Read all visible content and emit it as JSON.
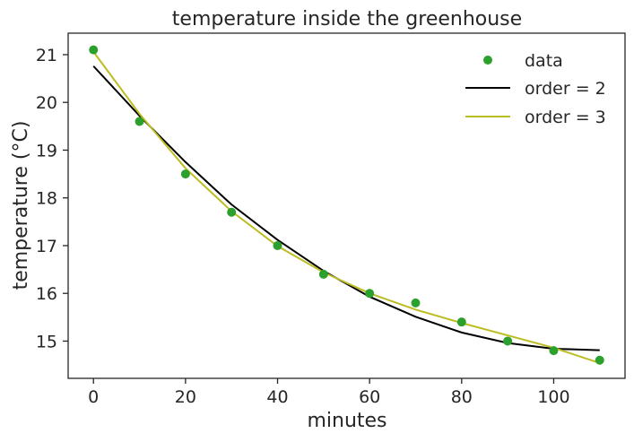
{
  "chart_data": {
    "type": "scatter",
    "title": "temperature inside the greenhouse",
    "xlabel": "minutes",
    "ylabel": "temperature (°C)",
    "xlim": [
      -5.5,
      115.5
    ],
    "ylim": [
      14.22,
      21.45
    ],
    "xticks": [
      0,
      20,
      40,
      60,
      80,
      100
    ],
    "yticks": [
      15,
      16,
      17,
      18,
      19,
      20,
      21
    ],
    "grid": false,
    "legend_position": "top-right",
    "series": [
      {
        "name": "data",
        "kind": "scatter",
        "color": "#2ca02c",
        "x": [
          0,
          10,
          20,
          30,
          40,
          50,
          60,
          70,
          80,
          90,
          100,
          110
        ],
        "y": [
          21.1,
          19.6,
          18.5,
          17.7,
          17.0,
          16.4,
          16.0,
          15.8,
          15.4,
          15.0,
          14.8,
          14.6
        ]
      },
      {
        "name": "order = 2",
        "kind": "line",
        "color": "#000000",
        "x": [
          0,
          10,
          20,
          30,
          40,
          50,
          60,
          70,
          80,
          90,
          100,
          110
        ],
        "y": [
          20.76,
          19.72,
          18.75,
          17.86,
          17.12,
          16.47,
          15.93,
          15.51,
          15.18,
          14.96,
          14.84,
          14.81
        ]
      },
      {
        "name": "order = 3",
        "kind": "line",
        "color": "#bcbd22",
        "x": [
          0,
          10,
          20,
          30,
          40,
          50,
          60,
          70,
          80,
          90,
          100,
          110
        ],
        "y": [
          21.06,
          19.76,
          18.62,
          17.72,
          16.99,
          16.44,
          16.0,
          15.66,
          15.38,
          15.12,
          14.86,
          14.54
        ]
      }
    ]
  }
}
